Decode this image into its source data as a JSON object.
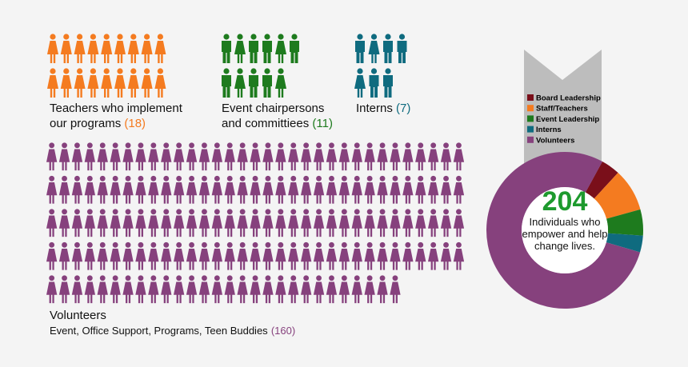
{
  "chart_data": [
    {
      "type": "pictogram",
      "series": [
        {
          "name": "Teachers who implement our programs",
          "color": "#f47b20",
          "icon": "woman",
          "values": [
            18
          ],
          "value_labels": [
            "(18)"
          ]
        },
        {
          "name": "Event chairpersons and committiees",
          "color": "#1e7b1e",
          "icon": "mixed",
          "values": [
            11
          ],
          "value_labels": [
            "(11)"
          ]
        },
        {
          "name": "Interns",
          "color": "#0f6b7f",
          "icon": "mixed",
          "values": [
            7
          ],
          "value_labels": [
            "(7)"
          ]
        },
        {
          "name": "Volunteers",
          "description": "Event, Office Support, Programs, Teen Buddies",
          "color": "#86417d",
          "icon": "woman",
          "values": [
            160
          ],
          "value_labels": [
            "(160)"
          ]
        }
      ]
    },
    {
      "type": "donut",
      "categories": [
        "Board Leadership",
        "Staff/Teachers",
        "Event Leadership",
        "Interns",
        "Volunteers"
      ],
      "values": [
        8,
        18,
        11,
        7,
        160
      ],
      "colors": [
        "#7a0f1a",
        "#f47b20",
        "#1e7b1e",
        "#0f6b7f",
        "#86417d"
      ],
      "center_value": 204,
      "center_text": "Individuals who empower and help change lives."
    }
  ]
}
